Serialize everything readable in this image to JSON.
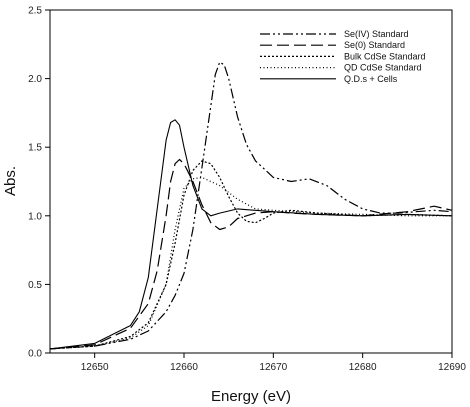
{
  "chart_data": {
    "type": "line",
    "xlabel": "Energy (eV)",
    "ylabel": "Abs.",
    "xlim": [
      12645,
      12690
    ],
    "ylim": [
      0.0,
      2.5
    ],
    "x_ticks": [
      12650,
      12660,
      12670,
      12680,
      12690
    ],
    "x_tick_labels": [
      "12650",
      "12660",
      "12670",
      "12680",
      "12690"
    ],
    "y_ticks": [
      0.0,
      0.5,
      1.0,
      1.5,
      2.0,
      2.5
    ],
    "y_tick_labels": [
      "0.0",
      "0.5",
      "1.0",
      "1.5",
      "2.0",
      "2.5"
    ],
    "grid": false,
    "legend_position": "top-right",
    "series": [
      {
        "name": "Se(IV) Standard",
        "dash": "dash-dot-dot",
        "x": [
          12645,
          12650,
          12654,
          12656,
          12658,
          12659,
          12660,
          12661,
          12662,
          12663,
          12663.5,
          12664,
          12664.5,
          12665,
          12666,
          12667,
          12668,
          12670,
          12672,
          12674,
          12676,
          12678,
          12680,
          12682,
          12684,
          12686,
          12688,
          12690
        ],
        "y": [
          0.03,
          0.05,
          0.1,
          0.16,
          0.3,
          0.42,
          0.58,
          0.9,
          1.35,
          1.8,
          2.03,
          2.12,
          2.1,
          2.0,
          1.72,
          1.52,
          1.4,
          1.28,
          1.25,
          1.27,
          1.22,
          1.12,
          1.05,
          1.02,
          1.02,
          1.03,
          1.04,
          1.03
        ]
      },
      {
        "name": "Se(0) Standard",
        "dash": "long-dash",
        "x": [
          12645,
          12650,
          12654,
          12656,
          12657,
          12658,
          12658.5,
          12659,
          12659.5,
          12660,
          12661,
          12662,
          12663,
          12664,
          12665,
          12666,
          12668,
          12670,
          12672,
          12675,
          12680,
          12685,
          12688,
          12690
        ],
        "y": [
          0.03,
          0.06,
          0.18,
          0.36,
          0.6,
          1.0,
          1.25,
          1.38,
          1.41,
          1.38,
          1.25,
          1.08,
          0.95,
          0.9,
          0.92,
          0.98,
          1.02,
          1.03,
          1.02,
          1.01,
          1.0,
          1.03,
          1.07,
          1.04
        ]
      },
      {
        "name": "Bulk CdSe Standard",
        "dash": "dense-dot",
        "x": [
          12645,
          12650,
          12654,
          12656,
          12658,
          12659,
          12660,
          12661,
          12662,
          12663,
          12664,
          12665,
          12666,
          12667,
          12668,
          12669,
          12670,
          12672,
          12675,
          12680,
          12685,
          12690
        ],
        "y": [
          0.03,
          0.05,
          0.12,
          0.22,
          0.5,
          0.8,
          1.15,
          1.33,
          1.4,
          1.38,
          1.28,
          1.14,
          1.02,
          0.96,
          0.95,
          0.98,
          1.02,
          1.04,
          1.02,
          1.0,
          1.01,
          1.0
        ]
      },
      {
        "name": "QD CdSe Standard",
        "dash": "sparse-dot",
        "x": [
          12645,
          12650,
          12654,
          12656,
          12658,
          12659,
          12660,
          12661,
          12662,
          12664,
          12666,
          12668,
          12670,
          12675,
          12680,
          12685,
          12690
        ],
        "y": [
          0.03,
          0.05,
          0.11,
          0.2,
          0.5,
          0.9,
          1.2,
          1.27,
          1.28,
          1.22,
          1.12,
          1.05,
          1.04,
          1.02,
          1.01,
          1.0,
          1.0
        ]
      },
      {
        "name": "Q.D.s + Cells",
        "dash": "solid",
        "x": [
          12645,
          12650,
          12654,
          12655,
          12656,
          12657,
          12658,
          12658.5,
          12659,
          12659.5,
          12660,
          12661,
          12662,
          12663,
          12664,
          12666,
          12668,
          12670,
          12675,
          12680,
          12685,
          12690
        ],
        "y": [
          0.03,
          0.07,
          0.2,
          0.3,
          0.55,
          1.05,
          1.55,
          1.68,
          1.7,
          1.66,
          1.5,
          1.22,
          1.05,
          1.0,
          1.02,
          1.05,
          1.04,
          1.03,
          1.01,
          1.0,
          1.01,
          1.0
        ]
      }
    ]
  }
}
